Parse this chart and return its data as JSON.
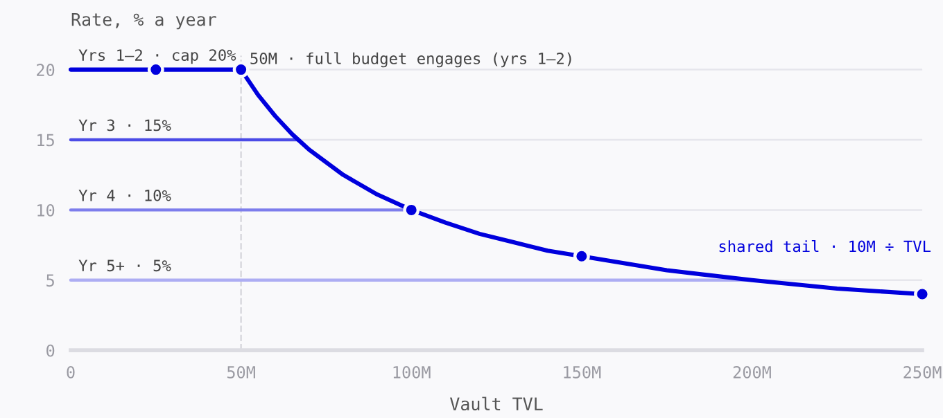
{
  "chart_data": {
    "type": "line",
    "ylabel": "Rate, % a year",
    "xlabel": "Vault TVL",
    "xlim": [
      0,
      250
    ],
    "ylim": [
      0,
      21
    ],
    "xticks": [
      0,
      {
        "value": 50,
        "label": "50M"
      },
      {
        "value": 100,
        "label": "100M"
      },
      {
        "value": 150,
        "label": "150M"
      },
      {
        "value": 200,
        "label": "200M"
      },
      {
        "value": 250,
        "label": "250M"
      }
    ],
    "yticks": [
      0,
      5,
      10,
      15,
      20
    ],
    "grid": "y",
    "marker": "none",
    "line_style": "solid",
    "series": [
      {
        "name": "Yrs 1–2 · cap 20%",
        "color": "#0000dd",
        "x": [
          0,
          50,
          55,
          60,
          65,
          70,
          80,
          90,
          100,
          110,
          120,
          130,
          140,
          150,
          175,
          200,
          225,
          250
        ],
        "values": [
          20,
          20,
          18.2,
          16.7,
          15.4,
          14.3,
          12.5,
          11.1,
          10,
          9.1,
          8.3,
          7.7,
          7.1,
          6.7,
          5.7,
          5,
          4.4,
          4
        ]
      },
      {
        "name": "Yr 3 · 15%",
        "color": "#4b4be6",
        "x": [
          0,
          66.7
        ],
        "values": [
          15,
          15
        ]
      },
      {
        "name": "Yr 4 · 10%",
        "color": "#7d7dec",
        "x": [
          0,
          100
        ],
        "values": [
          10,
          10
        ]
      },
      {
        "name": "Yr 5+ · 5%",
        "color": "#adadf3",
        "x": [
          0,
          200
        ],
        "values": [
          5,
          5
        ]
      },
      {
        "type": "scatter",
        "marker": "circle",
        "color": "#0000dd",
        "x": [
          25,
          50,
          100,
          150,
          250
        ],
        "values": [
          20,
          20,
          10,
          6.7,
          4
        ]
      }
    ],
    "ref_lines": [
      {
        "axis": "x",
        "value": 50,
        "label": "50M · full budget engages (yrs 1–2)",
        "color": "#d8d8de",
        "line_style": "dashed"
      }
    ],
    "annotations": [
      {
        "text": "shared tail · 10M ÷ TVL",
        "x": 190,
        "y": 5
      }
    ]
  }
}
